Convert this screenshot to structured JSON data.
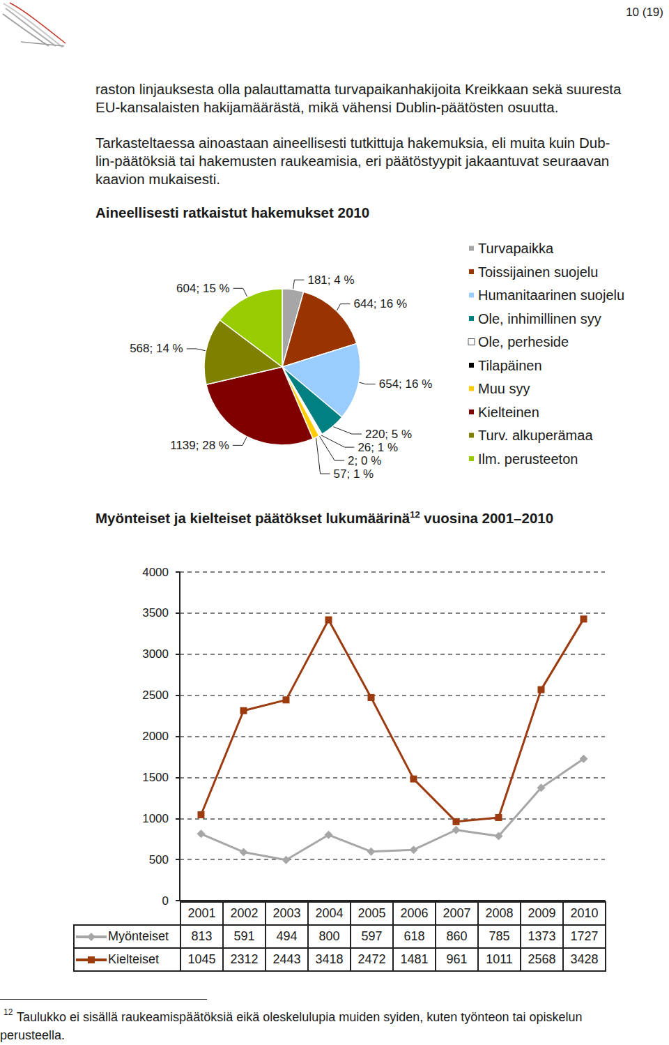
{
  "header": {
    "page_number": "10 (19)"
  },
  "paragraphs": [
    [
      "raston linjauksesta olla palauttamatta turvapaikanhakijoita Kreikkaan sekä suuresta",
      "EU-kansalaisten hakijamäärästä, mikä vähensi Dublin-päätösten osuutta."
    ],
    [
      "Tarkasteltaessa ainoastaan aineellisesti tutkittuja hakemuksia, eli muita kuin Dub-",
      "lin-päätöksiä tai hakemusten raukeamisia, eri päätöstyypit jakaantuvat seuraavan",
      "kaavion mukaisesti."
    ]
  ],
  "chart_data": [
    {
      "type": "pie",
      "title": "Aineellisesti ratkaistut hakemukset 2010",
      "categories": [
        "Turvapaikka",
        "Toissijainen suojelu",
        "Humanitaarinen suojelu",
        "Ole, inhimillinen syy",
        "Ole, perheside",
        "Tilapäinen",
        "Muu syy",
        "Kielteinen",
        "Turv. alkuperämaa",
        "Ilm. perusteeton"
      ],
      "values": [
        181,
        644,
        654,
        220,
        26,
        2,
        57,
        1139,
        568,
        604
      ],
      "value_labels": [
        "181; 4 %",
        "644; 16 %",
        "654; 16 %",
        "220; 5 %",
        "26; 1 %",
        "2; 0 %",
        "57; 1 %",
        "1139; 28 %",
        "568; 14 %",
        "604; 15 %"
      ],
      "colors": [
        "#a6a6a6",
        "#993300",
        "#99ccff",
        "#008080",
        "#ffffff",
        "#000000",
        "#ffcc00",
        "#800000",
        "#808000",
        "#99cc00"
      ],
      "legend": "right",
      "data_labels": true
    },
    {
      "type": "line",
      "title": {
        "text": "Myönteiset ja kielteiset päätökset lukumäärinä",
        "footnote_mark": "12",
        "text_after": "vuosina 2001–2010"
      },
      "categories": [
        "2001",
        "2002",
        "2003",
        "2004",
        "2005",
        "2006",
        "2007",
        "2008",
        "2009",
        "2010"
      ],
      "series": [
        {
          "name": "Myönteiset",
          "color": "#a6a6a6",
          "marker": "diamond",
          "values": [
            813,
            591,
            494,
            800,
            597,
            618,
            860,
            785,
            1373,
            1727
          ]
        },
        {
          "name": "Kielteiset",
          "color": "#9c3a10",
          "marker": "square",
          "values": [
            1045,
            2312,
            2443,
            3418,
            2472,
            1481,
            961,
            1011,
            2568,
            3428
          ]
        }
      ],
      "ylim": [
        0,
        4000
      ],
      "yticks": [
        0,
        500,
        1000,
        1500,
        2000,
        2500,
        3000,
        3500,
        4000
      ],
      "grid": true
    }
  ],
  "footnote": {
    "mark": "12",
    "lines": [
      "Taulukko ei sisällä raukeamispäätöksiä eikä oleskelulupia muiden syiden, kuten työnteon tai opiskelun",
      "perusteella."
    ]
  }
}
